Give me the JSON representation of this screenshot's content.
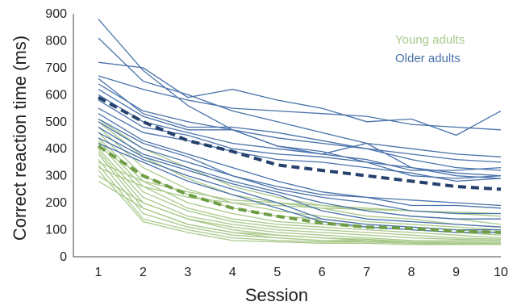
{
  "chart_data": {
    "type": "line",
    "xlabel": "Session",
    "ylabel": "Correct reaction time (ms)",
    "x": [
      1,
      2,
      3,
      4,
      5,
      6,
      7,
      8,
      9,
      10
    ],
    "xticks": [
      "1",
      "2",
      "3",
      "4",
      "5",
      "6",
      "7",
      "8",
      "9",
      "10"
    ],
    "ylim": [
      0,
      900
    ],
    "yticks": [
      "0",
      "100",
      "200",
      "300",
      "400",
      "500",
      "600",
      "700",
      "800",
      "900"
    ],
    "grid": false,
    "legend": {
      "position": "top-right",
      "entries": [
        {
          "label": "Young adults",
          "color": "#a9c98a"
        },
        {
          "label": "Older adults",
          "color": "#4a72ab"
        }
      ]
    },
    "group_colors": {
      "young": "#a9c98a",
      "older": "#4a72ab",
      "young_mean": "#6f9d45",
      "older_mean": "#26416b"
    },
    "groups": [
      {
        "key": "older",
        "color": "#4a72ab",
        "individuals": [
          [
            880,
            690,
            560,
            470,
            410,
            390,
            350,
            330,
            310,
            300
          ],
          [
            810,
            650,
            600,
            540,
            500,
            460,
            420,
            400,
            380,
            370
          ],
          [
            720,
            700,
            590,
            620,
            580,
            550,
            500,
            510,
            450,
            540
          ],
          [
            670,
            620,
            580,
            550,
            540,
            530,
            520,
            490,
            480,
            470
          ],
          [
            660,
            530,
            480,
            480,
            460,
            430,
            400,
            360,
            330,
            320
          ],
          [
            640,
            540,
            500,
            470,
            410,
            380,
            420,
            330,
            300,
            290
          ],
          [
            620,
            520,
            470,
            470,
            440,
            420,
            400,
            380,
            360,
            350
          ],
          [
            600,
            500,
            460,
            420,
            400,
            380,
            360,
            320,
            320,
            330
          ],
          [
            580,
            480,
            450,
            400,
            380,
            370,
            350,
            300,
            290,
            300
          ],
          [
            550,
            460,
            430,
            390,
            360,
            350,
            330,
            310,
            280,
            290
          ],
          [
            530,
            430,
            380,
            330,
            280,
            240,
            220,
            210,
            200,
            190
          ],
          [
            510,
            420,
            370,
            300,
            260,
            230,
            220,
            190,
            190,
            180
          ],
          [
            500,
            400,
            350,
            300,
            250,
            220,
            200,
            170,
            160,
            160
          ],
          [
            480,
            380,
            330,
            280,
            240,
            200,
            170,
            150,
            140,
            140
          ],
          [
            460,
            370,
            320,
            270,
            230,
            170,
            140,
            130,
            120,
            110
          ],
          [
            440,
            360,
            300,
            250,
            200,
            140,
            120,
            110,
            100,
            100
          ],
          [
            420,
            350,
            280,
            230,
            180,
            130,
            110,
            100,
            90,
            90
          ]
        ],
        "mean": [
          590,
          500,
          430,
          390,
          340,
          320,
          300,
          280,
          260,
          250
        ]
      },
      {
        "key": "young",
        "color": "#a9c98a",
        "individuals": [
          [
            510,
            400,
            330,
            260,
            220,
            190,
            170,
            150,
            140,
            120
          ],
          [
            500,
            370,
            290,
            230,
            200,
            180,
            150,
            140,
            120,
            110
          ],
          [
            480,
            330,
            250,
            200,
            170,
            150,
            130,
            120,
            110,
            100
          ],
          [
            460,
            300,
            230,
            180,
            150,
            140,
            120,
            110,
            100,
            90
          ],
          [
            440,
            280,
            200,
            160,
            130,
            120,
            110,
            100,
            90,
            80
          ],
          [
            430,
            260,
            180,
            140,
            120,
            110,
            100,
            90,
            80,
            70
          ],
          [
            420,
            240,
            170,
            130,
            110,
            100,
            90,
            80,
            70,
            65
          ],
          [
            400,
            220,
            150,
            120,
            100,
            90,
            80,
            70,
            65,
            60
          ],
          [
            390,
            200,
            140,
            110,
            90,
            80,
            70,
            60,
            60,
            55
          ],
          [
            380,
            180,
            120,
            90,
            80,
            70,
            65,
            55,
            55,
            50
          ],
          [
            360,
            160,
            110,
            80,
            70,
            60,
            60,
            50,
            50,
            50
          ],
          [
            340,
            140,
            100,
            70,
            60,
            55,
            55,
            50,
            45,
            45
          ],
          [
            320,
            130,
            90,
            60,
            55,
            50,
            50,
            45,
            45,
            45
          ],
          [
            300,
            200,
            140,
            100,
            80,
            70,
            60,
            55,
            50,
            50
          ],
          [
            280,
            180,
            120,
            90,
            70,
            60,
            55,
            50,
            45,
            45
          ],
          [
            350,
            280,
            240,
            210,
            200,
            190,
            180,
            170,
            160,
            150
          ],
          [
            330,
            260,
            220,
            200,
            190,
            180,
            175,
            170,
            165,
            160
          ]
        ],
        "mean": [
          410,
          300,
          230,
          180,
          150,
          125,
          110,
          105,
          95,
          90
        ]
      }
    ]
  }
}
